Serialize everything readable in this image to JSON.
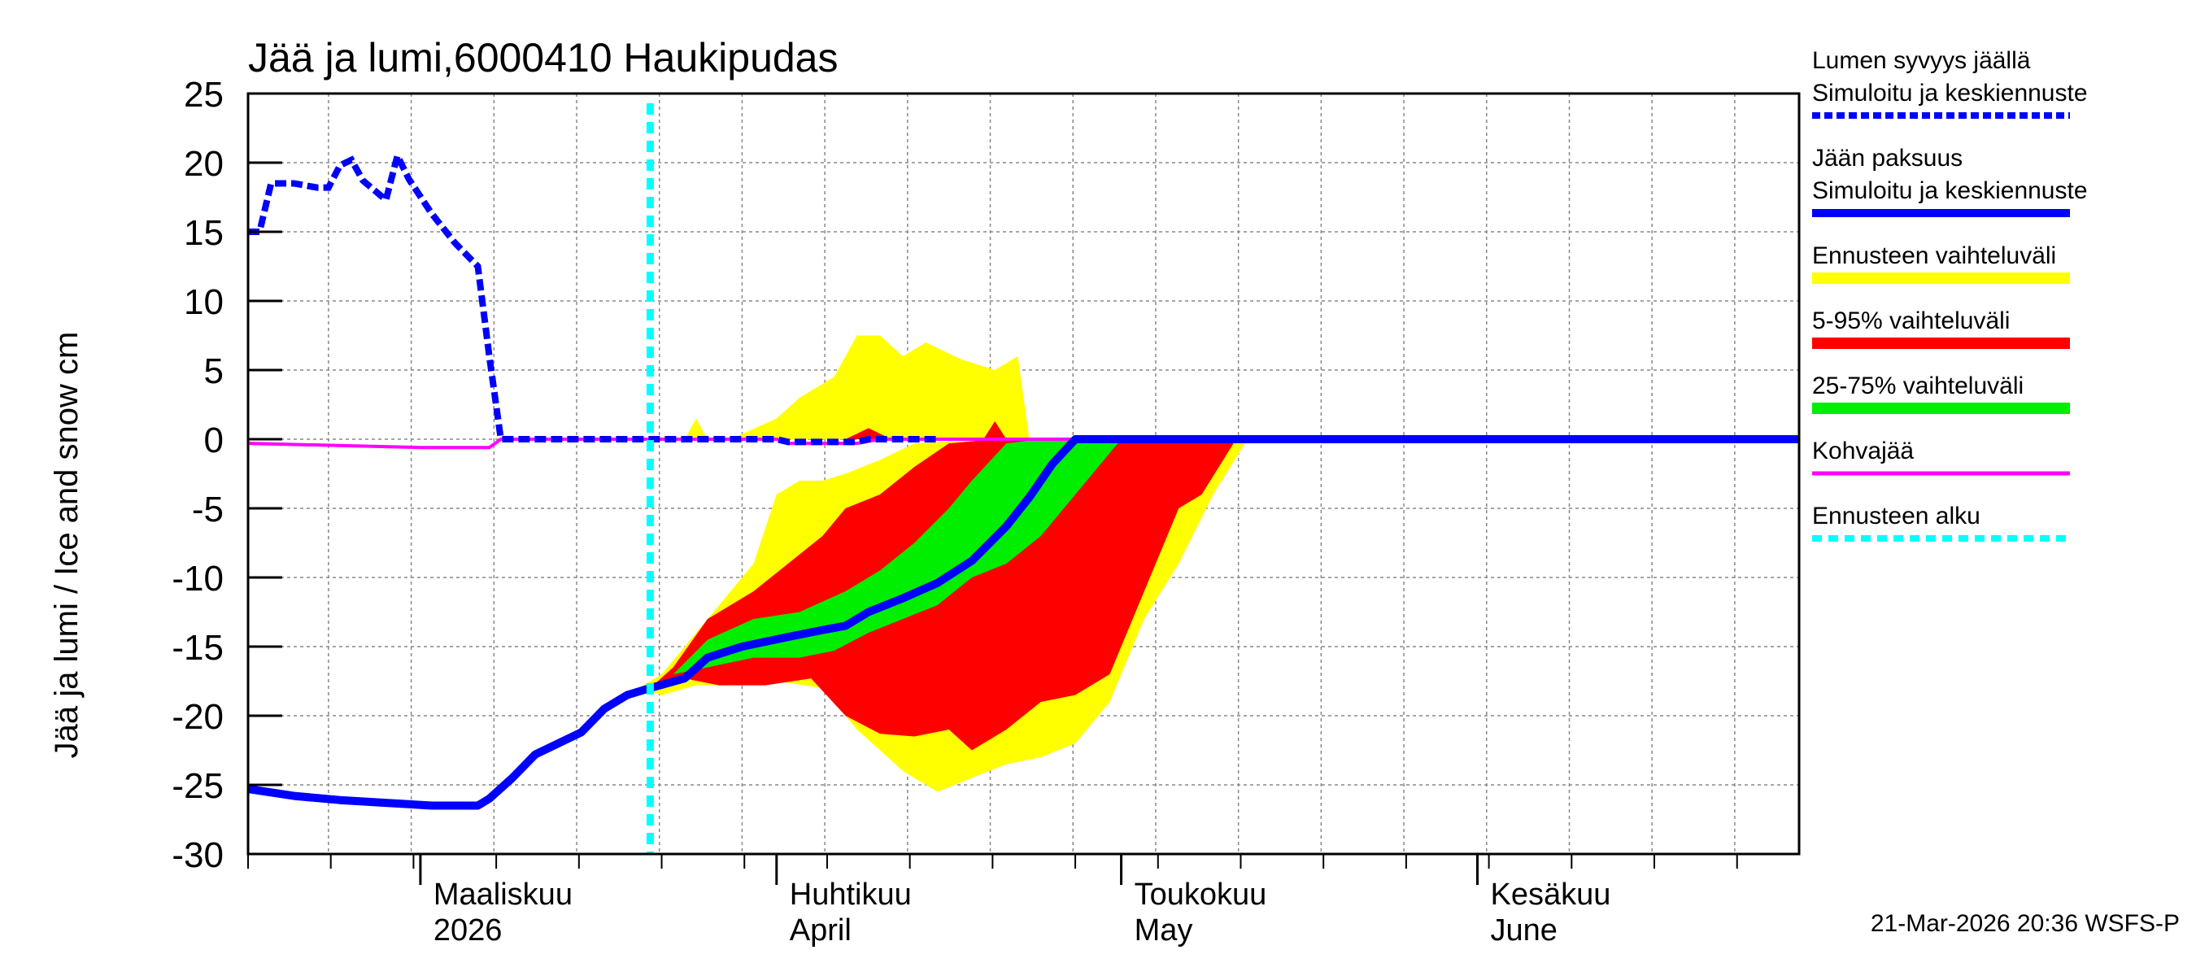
{
  "chart_data": {
    "type": "area",
    "title": "Jää ja lumi,6000410 Haukipudas",
    "ylabel": "Jää ja lumi / Ice and snow    cm",
    "ylim": [
      -30,
      25
    ],
    "yticks": [
      "25",
      "20",
      "15",
      "10",
      "5",
      "0",
      "-5",
      "-10",
      "-15",
      "-20",
      "-25",
      "-30"
    ],
    "xlim": [
      "2026-02-14",
      "2026-06-29"
    ],
    "grid": true,
    "months": [
      {
        "fi": "Maaliskuu",
        "en": "2026",
        "date": "2026-03-01"
      },
      {
        "fi": "Huhtikuu",
        "en": "April",
        "date": "2026-04-01"
      },
      {
        "fi": "Toukokuu",
        "en": "May",
        "date": "2026-05-01"
      },
      {
        "fi": "Kesäkuu",
        "en": "June",
        "date": "2026-06-01"
      }
    ],
    "forecast_start": "2026-03-21",
    "legend": [
      {
        "label": "Lumen syvyys jäällä",
        "label2": "Simuloitu ja keskiennuste",
        "color": "#0000ff",
        "style": "dashed"
      },
      {
        "label": "Jään paksuus",
        "label2": "Simuloitu ja keskiennuste",
        "color": "#0000ff",
        "style": "solid"
      },
      {
        "label": "Ennusteen vaihteluväli",
        "color": "#ffff00",
        "style": "band"
      },
      {
        "label": "5-95% vaihteluväli",
        "color": "#ff0000",
        "style": "band"
      },
      {
        "label": "25-75% vaihteluväli",
        "color": "#00ee00",
        "style": "band"
      },
      {
        "label": "Kohvajää",
        "color": "#ff00ff",
        "style": "solid"
      },
      {
        "label": "Ennusteen alku",
        "color": "#00ffff",
        "style": "dashed"
      }
    ],
    "series": {
      "snow_depth": [
        [
          "2026-02-14",
          15
        ],
        [
          "2026-02-15",
          15
        ],
        [
          "2026-02-16",
          18.5
        ],
        [
          "2026-02-18",
          18.5
        ],
        [
          "2026-02-20",
          18.2
        ],
        [
          "2026-02-21",
          18.2
        ],
        [
          "2026-02-22",
          19.8
        ],
        [
          "2026-02-23",
          20.2
        ],
        [
          "2026-02-24",
          18.7
        ],
        [
          "2026-02-25",
          18
        ],
        [
          "2026-02-26",
          17.3
        ],
        [
          "2026-02-27",
          20.5
        ],
        [
          "2026-02-28",
          18.8
        ],
        [
          "2026-03-02",
          16.3
        ],
        [
          "2026-03-04",
          14.2
        ],
        [
          "2026-03-06",
          12.5
        ],
        [
          "2026-03-07",
          6
        ],
        [
          "2026-03-08",
          0
        ],
        [
          "2026-03-21",
          0
        ],
        [
          "2026-04-01",
          0
        ],
        [
          "2026-04-02",
          -0.2
        ],
        [
          "2026-04-08",
          -0.2
        ],
        [
          "2026-04-09",
          0
        ],
        [
          "2026-04-15",
          0
        ]
      ],
      "ice_thickness": [
        [
          "2026-02-14",
          -25.3
        ],
        [
          "2026-02-18",
          -25.8
        ],
        [
          "2026-02-22",
          -26.1
        ],
        [
          "2026-02-26",
          -26.3
        ],
        [
          "2026-03-02",
          -26.5
        ],
        [
          "2026-03-06",
          -26.5
        ],
        [
          "2026-03-07",
          -26
        ],
        [
          "2026-03-09",
          -24.5
        ],
        [
          "2026-03-11",
          -22.8
        ],
        [
          "2026-03-13",
          -22
        ],
        [
          "2026-03-15",
          -21.2
        ],
        [
          "2026-03-17",
          -19.5
        ],
        [
          "2026-03-19",
          -18.5
        ],
        [
          "2026-03-21",
          -18
        ],
        [
          "2026-03-24",
          -17.3
        ],
        [
          "2026-03-26",
          -15.8
        ],
        [
          "2026-03-29",
          -15
        ],
        [
          "2026-04-02",
          -14.3
        ],
        [
          "2026-04-05",
          -13.8
        ],
        [
          "2026-04-07",
          -13.5
        ],
        [
          "2026-04-09",
          -12.5
        ],
        [
          "2026-04-12",
          -11.5
        ],
        [
          "2026-04-15",
          -10.4
        ],
        [
          "2026-04-18",
          -8.8
        ],
        [
          "2026-04-21",
          -6.3
        ],
        [
          "2026-04-23",
          -4.2
        ],
        [
          "2026-04-25",
          -1.8
        ],
        [
          "2026-04-27",
          0
        ],
        [
          "2026-06-29",
          0
        ]
      ],
      "slush_ice": [
        [
          "2026-02-14",
          -0.3
        ],
        [
          "2026-03-01",
          -0.6
        ],
        [
          "2026-03-07",
          -0.6
        ],
        [
          "2026-03-08",
          0
        ],
        [
          "2026-04-01",
          0
        ],
        [
          "2026-04-02",
          -0.3
        ],
        [
          "2026-04-08",
          -0.3
        ],
        [
          "2026-04-10",
          0
        ],
        [
          "2026-06-29",
          0
        ]
      ],
      "band_full_range": {
        "upper": [
          [
            "2026-03-20",
            -18
          ],
          [
            "2026-03-22",
            -17
          ],
          [
            "2026-03-25",
            -14
          ],
          [
            "2026-03-28",
            -11
          ],
          [
            "2026-03-30",
            -9
          ],
          [
            "2026-04-01",
            -4
          ],
          [
            "2026-04-03",
            -3
          ],
          [
            "2026-04-05",
            -3
          ],
          [
            "2026-04-07",
            -2.5
          ],
          [
            "2026-04-10",
            -1.5
          ],
          [
            "2026-04-13",
            -0.3
          ],
          [
            "2026-04-20",
            0
          ],
          [
            "2026-05-12",
            0
          ]
        ],
        "lower": [
          [
            "2026-03-20",
            -18
          ],
          [
            "2026-03-22",
            -18.5
          ],
          [
            "2026-03-25",
            -17.8
          ],
          [
            "2026-03-28",
            -17.8
          ],
          [
            "2026-04-01",
            -17.5
          ],
          [
            "2026-04-05",
            -18
          ],
          [
            "2026-04-08",
            -21
          ],
          [
            "2026-04-12",
            -24
          ],
          [
            "2026-04-15",
            -25.5
          ],
          [
            "2026-04-18",
            -24.5
          ],
          [
            "2026-04-21",
            -23.5
          ],
          [
            "2026-04-24",
            -23
          ],
          [
            "2026-04-27",
            -22
          ],
          [
            "2026-04-30",
            -19
          ],
          [
            "2026-05-03",
            -13
          ],
          [
            "2026-05-06",
            -9
          ],
          [
            "2026-05-09",
            -4
          ],
          [
            "2026-05-12",
            0
          ]
        ]
      },
      "band_5_95": {
        "upper": [
          [
            "2026-03-21",
            -18
          ],
          [
            "2026-03-23",
            -16.5
          ],
          [
            "2026-03-26",
            -13
          ],
          [
            "2026-03-30",
            -11
          ],
          [
            "2026-04-02",
            -9
          ],
          [
            "2026-04-05",
            -7
          ],
          [
            "2026-04-07",
            -5
          ],
          [
            "2026-04-10",
            -4
          ],
          [
            "2026-04-13",
            -2
          ],
          [
            "2026-04-16",
            -0.3
          ],
          [
            "2026-04-20",
            0
          ],
          [
            "2026-05-11",
            0
          ]
        ],
        "lower": [
          [
            "2026-03-21",
            -18
          ],
          [
            "2026-03-24",
            -17.3
          ],
          [
            "2026-03-27",
            -17.8
          ],
          [
            "2026-03-31",
            -17.8
          ],
          [
            "2026-04-04",
            -17.3
          ],
          [
            "2026-04-07",
            -20
          ],
          [
            "2026-04-10",
            -21.3
          ],
          [
            "2026-04-13",
            -21.5
          ],
          [
            "2026-04-16",
            -21
          ],
          [
            "2026-04-18",
            -22.5
          ],
          [
            "2026-04-21",
            -21
          ],
          [
            "2026-04-24",
            -19
          ],
          [
            "2026-04-27",
            -18.5
          ],
          [
            "2026-04-30",
            -17
          ],
          [
            "2026-05-03",
            -11
          ],
          [
            "2026-05-06",
            -5
          ],
          [
            "2026-05-08",
            -4
          ],
          [
            "2026-05-11",
            0
          ]
        ]
      },
      "band_25_75": {
        "upper": [
          [
            "2026-03-23",
            -17
          ],
          [
            "2026-03-26",
            -14.5
          ],
          [
            "2026-03-30",
            -13
          ],
          [
            "2026-04-03",
            -12.5
          ],
          [
            "2026-04-07",
            -11
          ],
          [
            "2026-04-10",
            -9.5
          ],
          [
            "2026-04-13",
            -7.5
          ],
          [
            "2026-04-16",
            -5
          ],
          [
            "2026-04-18",
            -3
          ],
          [
            "2026-04-21",
            -0.3
          ],
          [
            "2026-04-24",
            0
          ],
          [
            "2026-05-01",
            0
          ]
        ],
        "lower": [
          [
            "2026-03-23",
            -17
          ],
          [
            "2026-03-26",
            -16.5
          ],
          [
            "2026-03-30",
            -15.8
          ],
          [
            "2026-04-03",
            -15.8
          ],
          [
            "2026-04-06",
            -15.3
          ],
          [
            "2026-04-09",
            -14
          ],
          [
            "2026-04-12",
            -13
          ],
          [
            "2026-04-15",
            -12
          ],
          [
            "2026-04-18",
            -10
          ],
          [
            "2026-04-21",
            -9
          ],
          [
            "2026-04-24",
            -7
          ],
          [
            "2026-04-27",
            -4
          ],
          [
            "2026-05-01",
            0
          ]
        ]
      },
      "band_full_range_above": [
        [
          "2026-03-24",
          0
        ],
        [
          "2026-03-25",
          1.5
        ],
        [
          "2026-03-26",
          0
        ],
        [
          "2026-03-28",
          0
        ],
        [
          "2026-04-01",
          1.5
        ],
        [
          "2026-04-03",
          3
        ],
        [
          "2026-04-06",
          4.5
        ],
        [
          "2026-04-08",
          7.5
        ],
        [
          "2026-04-10",
          7.5
        ],
        [
          "2026-04-12",
          6
        ],
        [
          "2026-04-14",
          7
        ],
        [
          "2026-04-17",
          5.8
        ],
        [
          "2026-04-20",
          5
        ],
        [
          "2026-04-22",
          6
        ],
        [
          "2026-04-23",
          0
        ]
      ],
      "band_5_95_above": [
        [
          "2026-04-07",
          0
        ],
        [
          "2026-04-09",
          0.8
        ],
        [
          "2026-04-11",
          0
        ],
        [
          "2026-04-19",
          0
        ],
        [
          "2026-04-20",
          1.3
        ],
        [
          "2026-04-21",
          0
        ]
      ]
    }
  },
  "footer": "21-Mar-2026 20:36 WSFS-P"
}
